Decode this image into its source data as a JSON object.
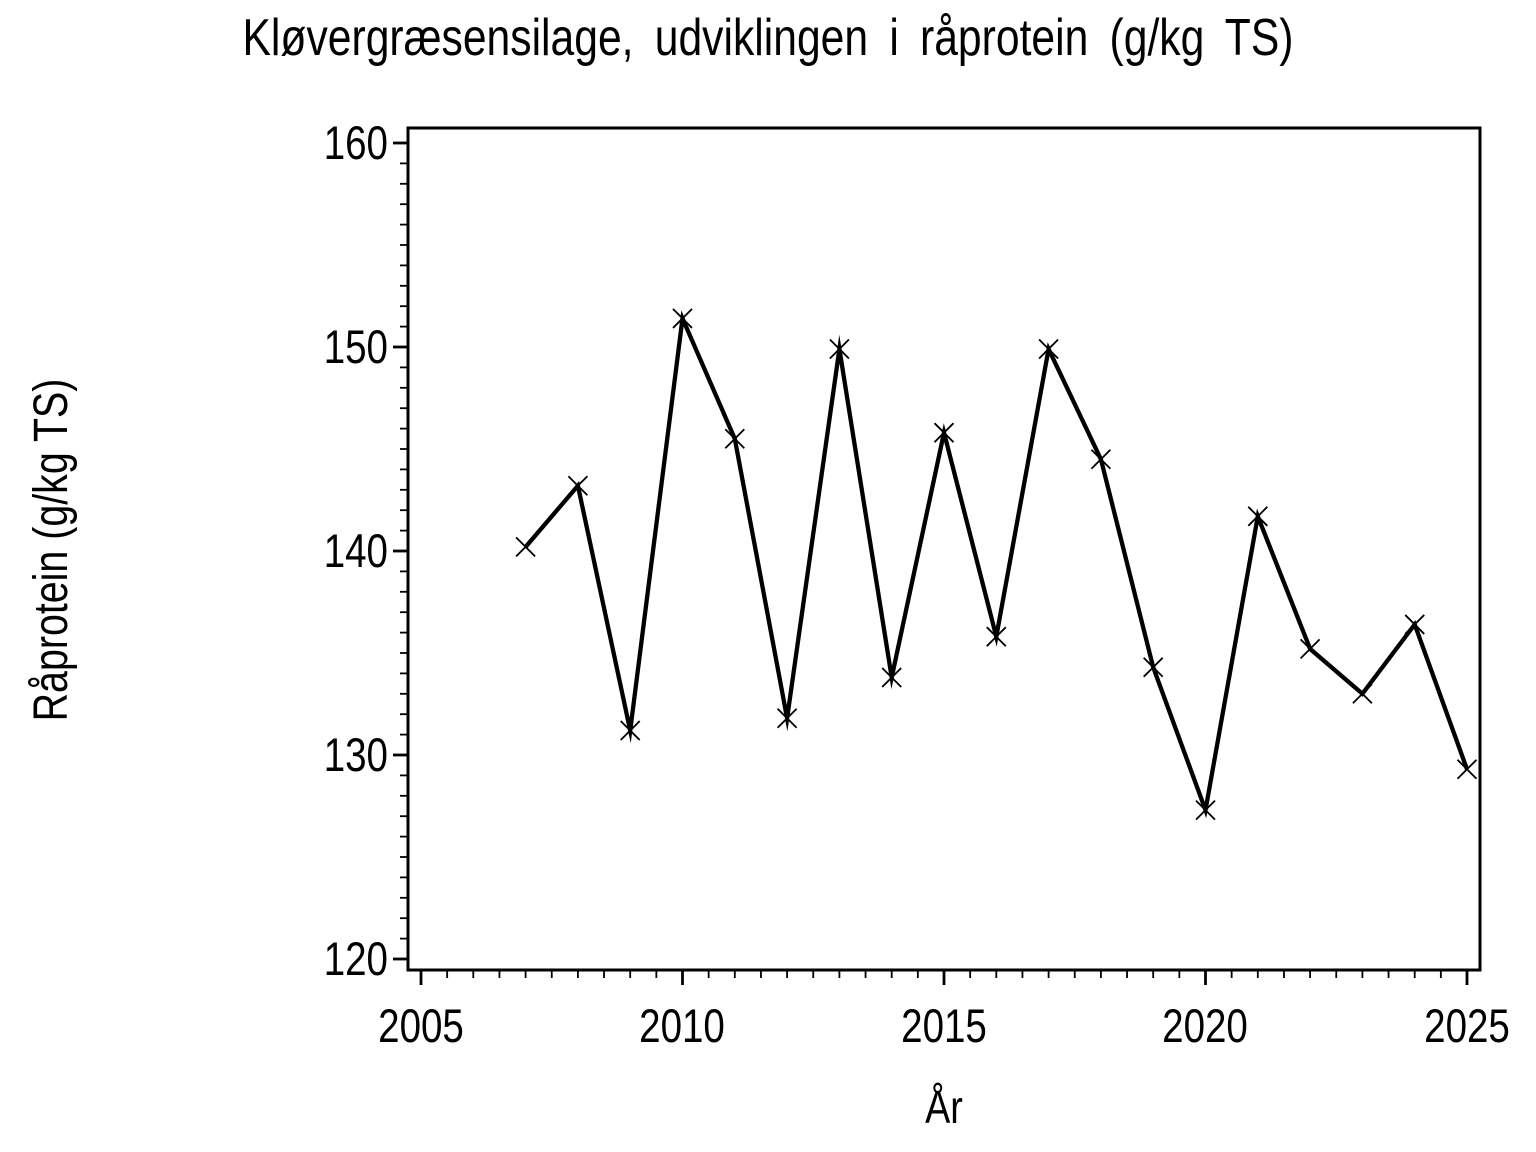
{
  "chart_data": {
    "type": "line",
    "title": "Kløvergræsensilage,  udviklingen  i  råprotein  (g/kg TS)",
    "xlabel": "År",
    "ylabel": "Råprotein  (g/kg TS)",
    "series": [
      {
        "name": "råprotein",
        "x": [
          2007,
          2008,
          2009,
          2010,
          2011,
          2012,
          2013,
          2014,
          2015,
          2016,
          2017,
          2018,
          2019,
          2020,
          2021,
          2022,
          2023,
          2024,
          2025
        ],
        "values": [
          140.2,
          143.2,
          131.2,
          151.4,
          145.5,
          131.8,
          149.9,
          133.8,
          145.8,
          135.8,
          149.9,
          144.5,
          134.3,
          127.3,
          141.7,
          135.2,
          133.0,
          136.4,
          129.3
        ]
      }
    ],
    "xlim": [
      2005,
      2025
    ],
    "ylim": [
      120,
      160
    ],
    "xticks": {
      "values": [
        2005,
        2010,
        2015,
        2020,
        2025
      ],
      "labels": [
        "2005",
        "2010",
        "2015",
        "2020",
        "2025"
      ]
    },
    "yticks": {
      "values": [
        120,
        130,
        140,
        150,
        160
      ],
      "labels": [
        "120",
        "130",
        "140",
        "150",
        "160"
      ]
    },
    "x_minor_step": 0.5,
    "y_minor_step": 1,
    "marker": "x",
    "line_color": "#000000",
    "axis_color": "#000000",
    "background_color": "#ffffff",
    "grid": "off",
    "legend": "none"
  }
}
